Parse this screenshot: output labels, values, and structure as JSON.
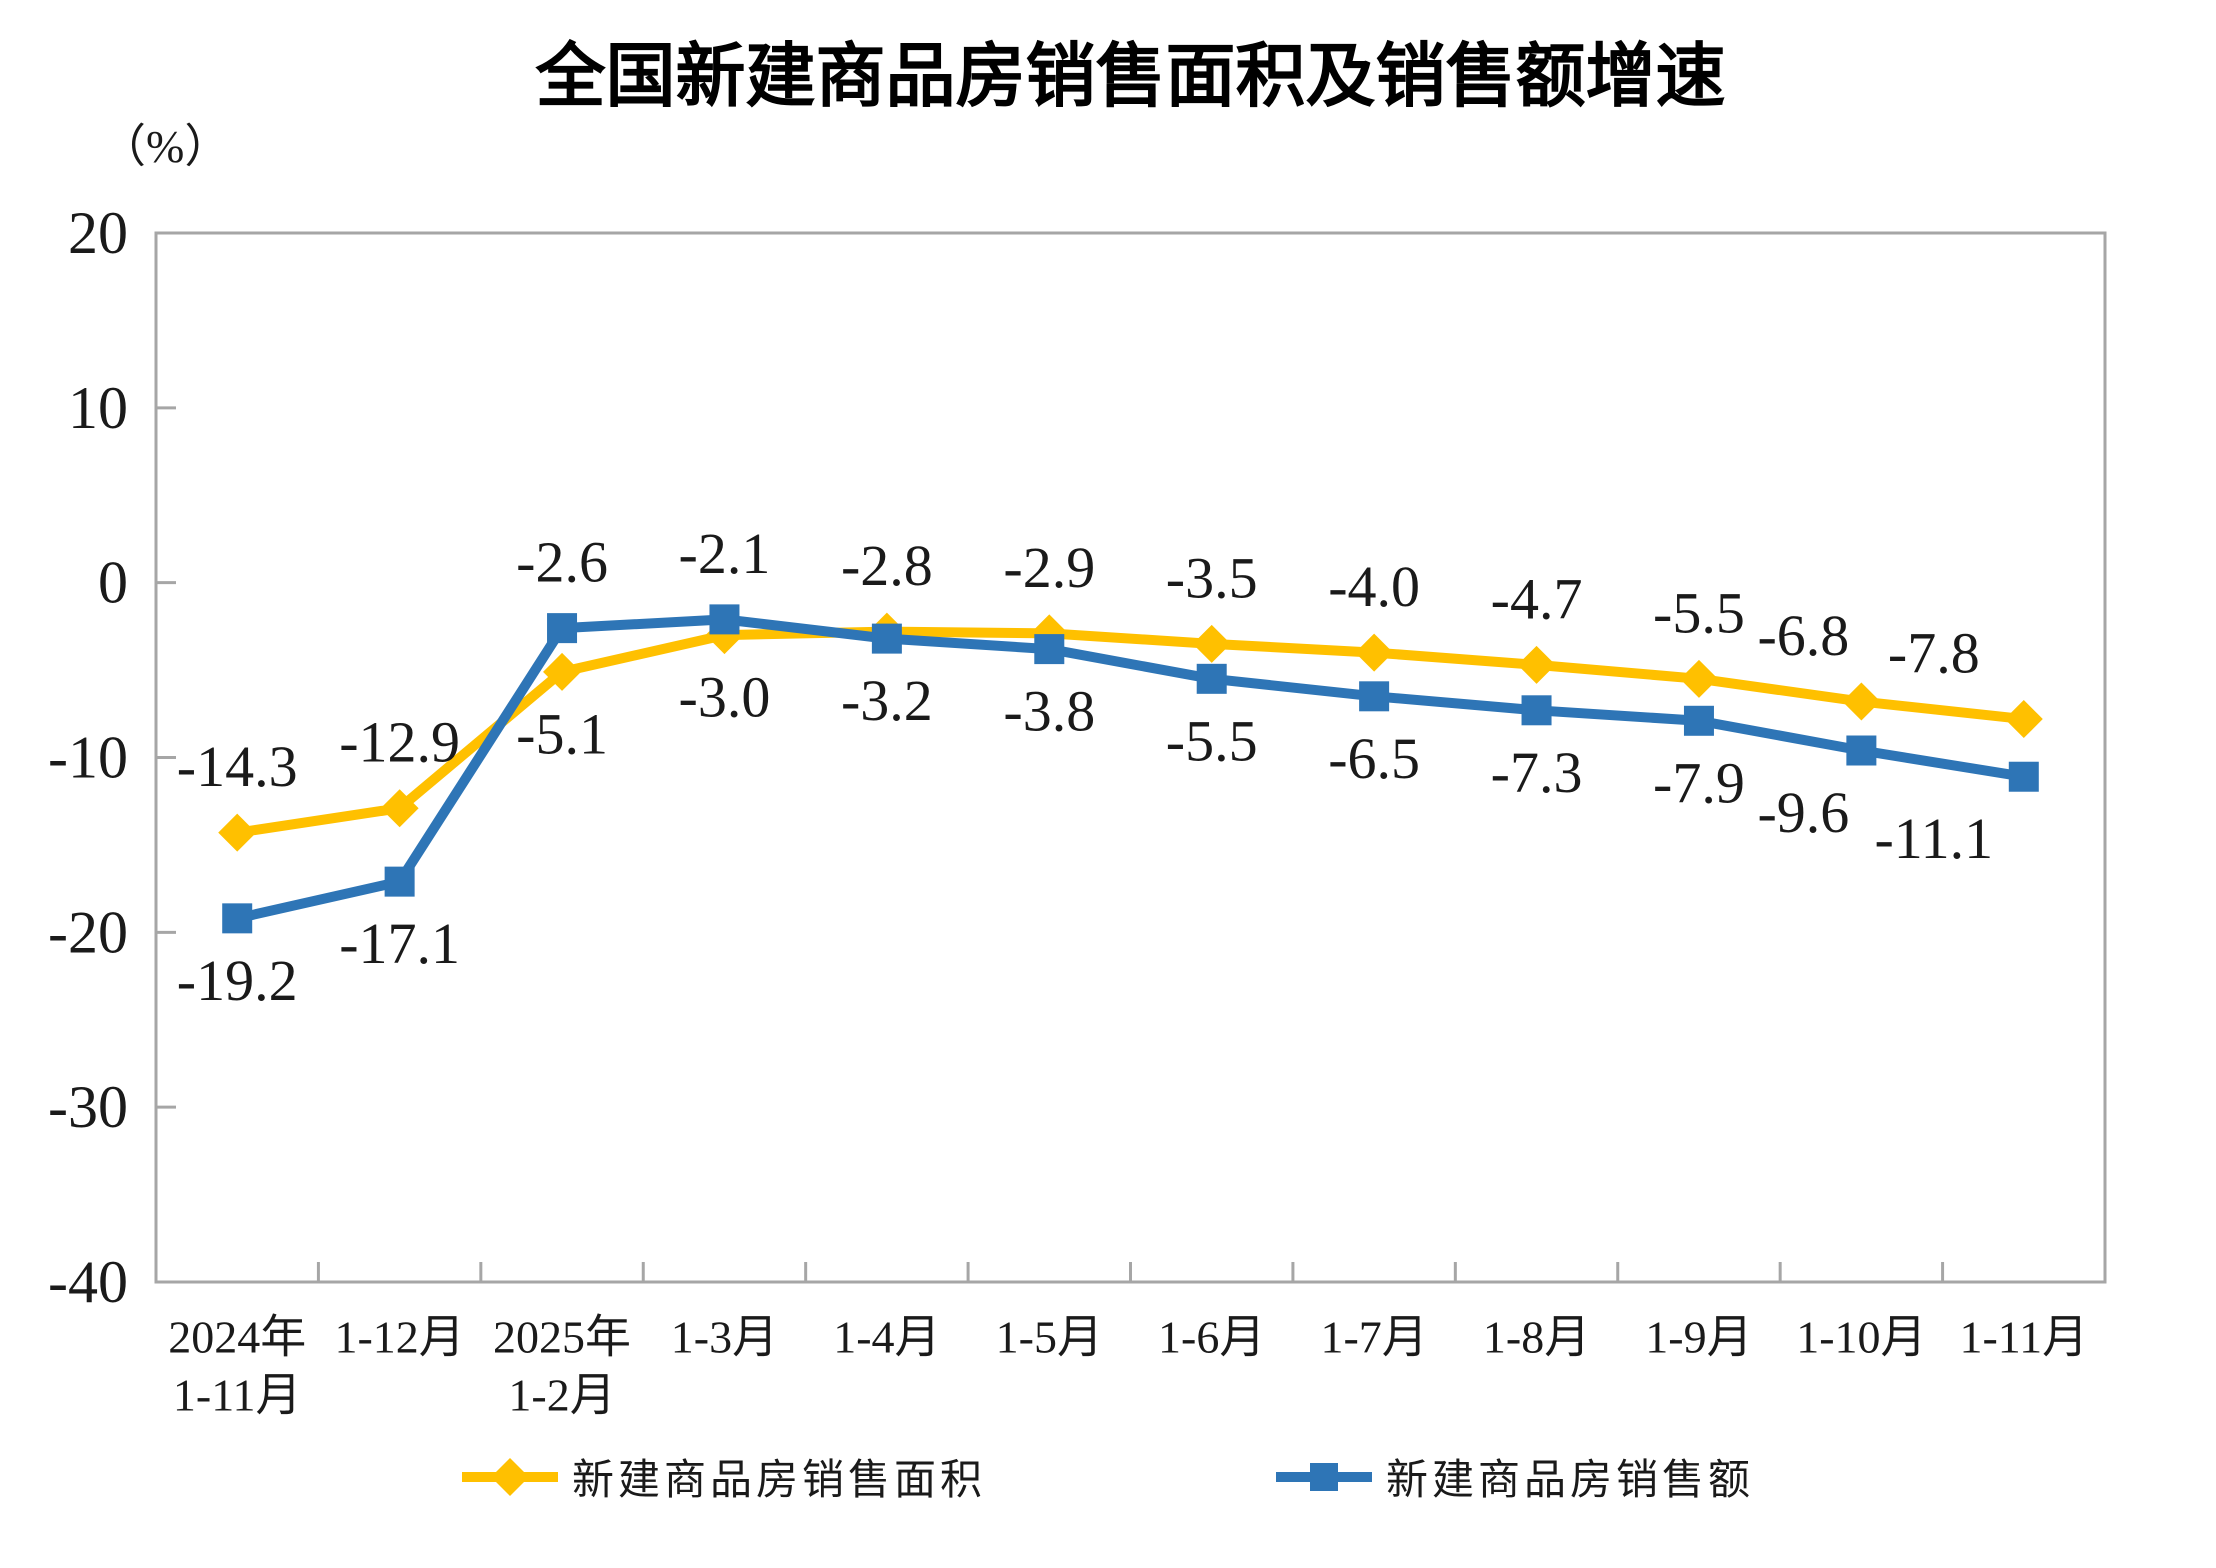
{
  "page": {
    "background": "#ffffff"
  },
  "chart_data": {
    "type": "line",
    "title": "全国新建商品房销售面积及销售额增速",
    "unit_label": "（%）",
    "categories": [
      "2024年\n1-11月",
      "1-12月",
      "2025年\n1-2月",
      "1-3月",
      "1-4月",
      "1-5月",
      "1-6月",
      "1-7月",
      "1-8月",
      "1-9月",
      "1-10月",
      "1-11月"
    ],
    "y_axis": {
      "min": -40,
      "max": 20,
      "tick_step": 10,
      "ticks": [
        20,
        10,
        0,
        -10,
        -20,
        -30,
        -40
      ]
    },
    "series": [
      {
        "name": "新建商品房销售面积",
        "color": "#FFC000",
        "marker": "diamond",
        "values": [
          -14.3,
          -12.9,
          -5.1,
          -3.0,
          -2.8,
          -2.9,
          -3.5,
          -4.0,
          -4.7,
          -5.5,
          -6.8,
          -7.8
        ]
      },
      {
        "name": "新建商品房销售额",
        "color": "#2E75B6",
        "marker": "square",
        "values": [
          -19.2,
          -17.1,
          -2.6,
          -2.1,
          -3.2,
          -3.8,
          -5.5,
          -6.5,
          -7.3,
          -7.9,
          -9.6,
          -11.1
        ]
      }
    ],
    "legend_position": "bottom",
    "grid": false,
    "axis_color": "#A6A6A6",
    "text_color": "#1a1a1a"
  }
}
